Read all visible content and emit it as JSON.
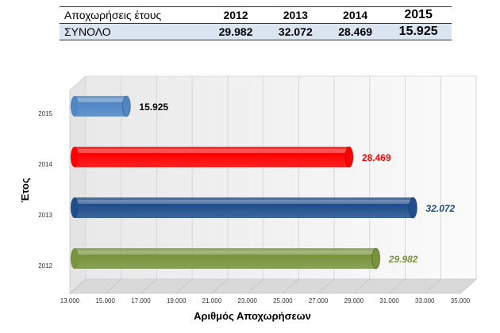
{
  "table": {
    "header": [
      "Αποχωρήσεις έτους",
      "2012",
      "2013",
      "2014",
      "2015"
    ],
    "total_row": [
      "ΣΥΝΟΛΟ",
      "29.982",
      "32.072",
      "28.469",
      "15.925"
    ]
  },
  "chart_data": {
    "type": "bar",
    "orientation": "horizontal",
    "categories": [
      "2015",
      "2014",
      "2013",
      "2012"
    ],
    "values": [
      15925,
      28469,
      32072,
      29982
    ],
    "value_labels": [
      "15.925",
      "28.469",
      "32.072",
      "29.982"
    ],
    "bar_colors": [
      "#4f86c6",
      "#ff0000",
      "#1f4e8c",
      "#77933c"
    ],
    "label_colors": [
      "#000000",
      "#ff0000",
      "#1f4e79",
      "#77933c"
    ],
    "label_italic": [
      false,
      false,
      true,
      true
    ],
    "xlabel": "Αριθμός Αποχωρήσεων",
    "ylabel": "Έτος",
    "xlim": [
      13000,
      35000
    ],
    "xticks": [
      13000,
      15000,
      17000,
      19000,
      21000,
      23000,
      25000,
      27000,
      29000,
      31000,
      33000,
      35000
    ],
    "xtick_labels": [
      "13.000",
      "15.000",
      "17.000",
      "19.000",
      "21.000",
      "23.000",
      "25.000",
      "27.000",
      "29.000",
      "31.000",
      "33.000",
      "35.000"
    ],
    "grid": true
  }
}
